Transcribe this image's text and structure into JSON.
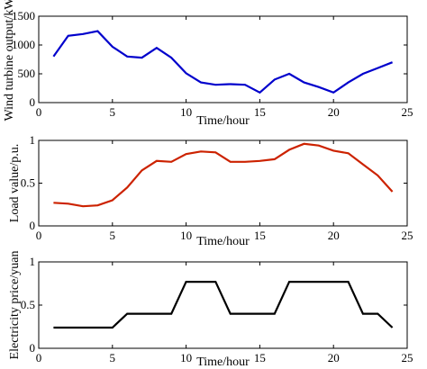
{
  "chart_data": [
    {
      "type": "line",
      "xlabel": "Time/hour",
      "ylabel": "Wind turbine output/kW",
      "xlim": [
        0,
        25
      ],
      "ylim": [
        0,
        1500
      ],
      "xticks": [
        0,
        5,
        10,
        15,
        20,
        25
      ],
      "xtick_labels": [
        "0",
        "5",
        "10",
        "15",
        "20",
        "25"
      ],
      "yticks": [
        0,
        500,
        1000,
        1500
      ],
      "ytick_labels": [
        "0",
        "500",
        "1000",
        "1500"
      ],
      "grid": false,
      "legend": "none",
      "series": [
        {
          "color": "#0000cc",
          "x": [
            1,
            2,
            3,
            4,
            5,
            6,
            7,
            8,
            9,
            10,
            11,
            12,
            13,
            14,
            15,
            16,
            17,
            18,
            19,
            20,
            21,
            22,
            23,
            24
          ],
          "values": [
            800,
            1160,
            1190,
            1240,
            970,
            800,
            780,
            950,
            780,
            510,
            350,
            310,
            320,
            310,
            175,
            400,
            500,
            350,
            270,
            175,
            350,
            500,
            600,
            700
          ]
        }
      ]
    },
    {
      "type": "line",
      "xlabel": "Time/hour",
      "ylabel": "Load value/p.u.",
      "xlim": [
        0,
        25
      ],
      "ylim": [
        0,
        1
      ],
      "xticks": [
        0,
        5,
        10,
        15,
        20,
        25
      ],
      "xtick_labels": [
        "0",
        "5",
        "10",
        "15",
        "20",
        "25"
      ],
      "yticks": [
        0,
        0.5,
        1
      ],
      "ytick_labels": [
        "0",
        "0.5",
        "1"
      ],
      "grid": false,
      "legend": "none",
      "series": [
        {
          "color": "#cc2200",
          "x": [
            1,
            2,
            3,
            4,
            5,
            6,
            7,
            8,
            9,
            10,
            11,
            12,
            13,
            14,
            15,
            16,
            17,
            18,
            19,
            20,
            21,
            22,
            23,
            24
          ],
          "values": [
            0.27,
            0.26,
            0.23,
            0.24,
            0.3,
            0.45,
            0.65,
            0.76,
            0.75,
            0.84,
            0.87,
            0.86,
            0.75,
            0.75,
            0.76,
            0.78,
            0.89,
            0.96,
            0.94,
            0.88,
            0.85,
            0.72,
            0.59,
            0.4
          ]
        }
      ]
    },
    {
      "type": "line",
      "xlabel": "Time/hour",
      "ylabel": "Electricity price/yuan",
      "xlim": [
        0,
        25
      ],
      "ylim": [
        0,
        1
      ],
      "xticks": [
        0,
        5,
        10,
        15,
        20,
        25
      ],
      "xtick_labels": [
        "0",
        "5",
        "10",
        "15",
        "20",
        "25"
      ],
      "yticks": [
        0,
        0.5,
        1
      ],
      "ytick_labels": [
        "0",
        "0.5",
        "1"
      ],
      "grid": false,
      "legend": "none",
      "series": [
        {
          "color": "#000000",
          "x": [
            1,
            2,
            3,
            4,
            5,
            6,
            7,
            8,
            9,
            10,
            11,
            12,
            13,
            14,
            15,
            16,
            17,
            18,
            19,
            20,
            21,
            22,
            23,
            24
          ],
          "values": [
            0.24,
            0.24,
            0.24,
            0.24,
            0.24,
            0.4,
            0.4,
            0.4,
            0.4,
            0.77,
            0.77,
            0.77,
            0.4,
            0.4,
            0.4,
            0.4,
            0.77,
            0.77,
            0.77,
            0.77,
            0.77,
            0.4,
            0.4,
            0.24
          ]
        }
      ]
    }
  ]
}
